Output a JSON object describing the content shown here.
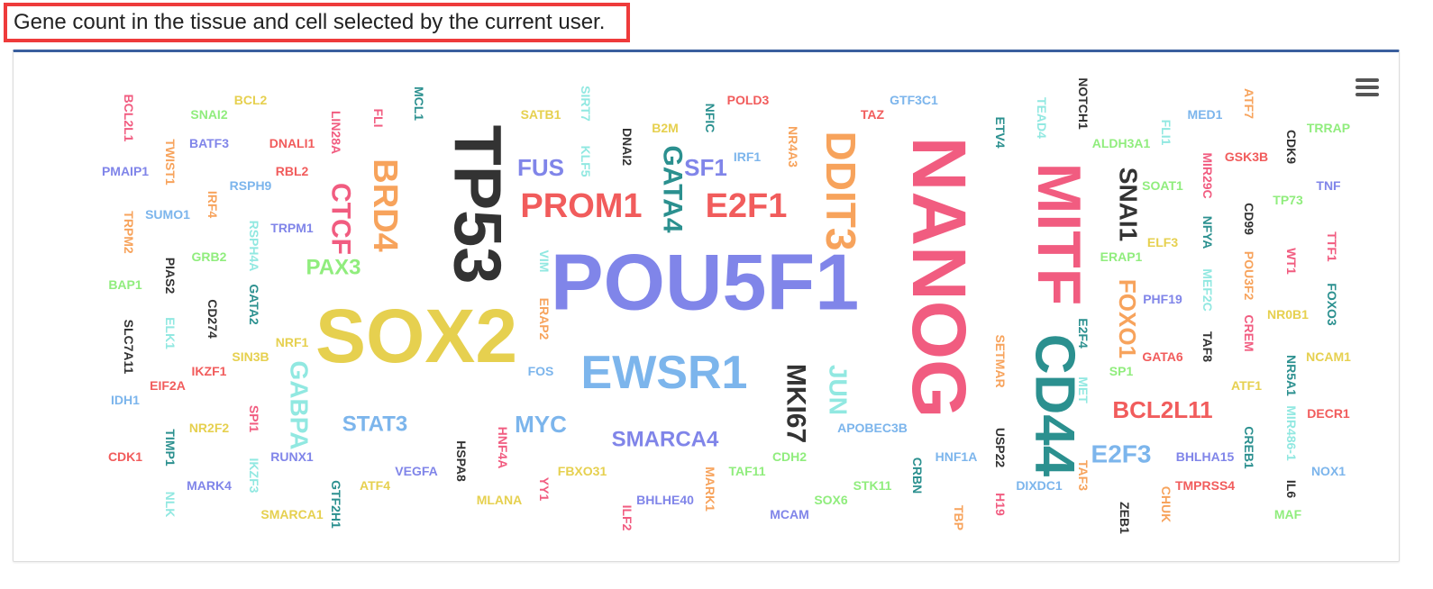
{
  "caption": "Gene count in the tissue and cell selected by the current user.",
  "menu": {
    "icon": "hamburger-menu-icon"
  },
  "colors": {
    "red": "#f15c5c",
    "yellow": "#e6d04f",
    "blue": "#7cb5ec",
    "black": "#333333",
    "green": "#90ed7d",
    "orange": "#f7a35c",
    "purple": "#8085e9",
    "pink": "#f15c80",
    "teal": "#2b908f",
    "cyan": "#91e8e1",
    "frame": "#3a5f9e",
    "caption_border": "#ee3b3b"
  },
  "chart_data": {
    "type": "wordcloud",
    "title": "",
    "words": [
      {
        "text": "POU5F1",
        "weight": 100,
        "color": "purple",
        "rotation": 0
      },
      {
        "text": "NANOG",
        "weight": 92,
        "color": "pink",
        "rotation": 90
      },
      {
        "text": "SOX2",
        "weight": 92,
        "color": "yellow",
        "rotation": 0
      },
      {
        "text": "TP53",
        "weight": 70,
        "color": "black",
        "rotation": 90
      },
      {
        "text": "MITF",
        "weight": 68,
        "color": "pink",
        "rotation": 90
      },
      {
        "text": "CD44",
        "weight": 62,
        "color": "teal",
        "rotation": 90
      },
      {
        "text": "EWSR1",
        "weight": 58,
        "color": "blue",
        "rotation": 0
      },
      {
        "text": "DDIT3",
        "weight": 50,
        "color": "orange",
        "rotation": 90
      },
      {
        "text": "PROM1",
        "weight": 42,
        "color": "red",
        "rotation": 0
      },
      {
        "text": "E2F1",
        "weight": 42,
        "color": "red",
        "rotation": 0
      },
      {
        "text": "BRD4",
        "weight": 38,
        "color": "orange",
        "rotation": 90
      },
      {
        "text": "MKI67",
        "weight": 32,
        "color": "black",
        "rotation": 90
      },
      {
        "text": "GATA4",
        "weight": 32,
        "color": "teal",
        "rotation": 90
      },
      {
        "text": "CTCF",
        "weight": 32,
        "color": "pink",
        "rotation": 90
      },
      {
        "text": "SNAI1",
        "weight": 30,
        "color": "black",
        "rotation": 90
      },
      {
        "text": "JUN",
        "weight": 30,
        "color": "cyan",
        "rotation": 90
      },
      {
        "text": "FOXO1",
        "weight": 28,
        "color": "orange",
        "rotation": 90
      },
      {
        "text": "GABPA",
        "weight": 28,
        "color": "cyan",
        "rotation": 90
      },
      {
        "text": "E2F3",
        "weight": 28,
        "color": "blue",
        "rotation": 0
      },
      {
        "text": "BCL2L11",
        "weight": 26,
        "color": "red",
        "rotation": 0
      },
      {
        "text": "SF1",
        "weight": 26,
        "color": "purple",
        "rotation": 0
      },
      {
        "text": "FUS",
        "weight": 26,
        "color": "purple",
        "rotation": 0
      },
      {
        "text": "MYC",
        "weight": 26,
        "color": "blue",
        "rotation": 0
      },
      {
        "text": "PAX3",
        "weight": 26,
        "color": "green",
        "rotation": 0
      },
      {
        "text": "STAT3",
        "weight": 25,
        "color": "blue",
        "rotation": 0
      },
      {
        "text": "SMARCA4",
        "weight": 25,
        "color": "purple",
        "rotation": 0
      },
      {
        "text": "BCL2L1",
        "weight": 14,
        "color": "pink",
        "rotation": 90
      },
      {
        "text": "SNAI2",
        "weight": 14,
        "color": "green",
        "rotation": 0
      },
      {
        "text": "BCL2",
        "weight": 14,
        "color": "yellow",
        "rotation": 0
      },
      {
        "text": "BATF3",
        "weight": 14,
        "color": "purple",
        "rotation": 0
      },
      {
        "text": "TWIST1",
        "weight": 14,
        "color": "orange",
        "rotation": 90
      },
      {
        "text": "PMAIP1",
        "weight": 14,
        "color": "purple",
        "rotation": 0
      },
      {
        "text": "DNALI1",
        "weight": 14,
        "color": "red",
        "rotation": 0
      },
      {
        "text": "RBL2",
        "weight": 14,
        "color": "red",
        "rotation": 0
      },
      {
        "text": "RSPH9",
        "weight": 14,
        "color": "blue",
        "rotation": 0
      },
      {
        "text": "SUMO1",
        "weight": 14,
        "color": "blue",
        "rotation": 0
      },
      {
        "text": "IRF4",
        "weight": 14,
        "color": "orange",
        "rotation": 90
      },
      {
        "text": "TRPM2",
        "weight": 14,
        "color": "orange",
        "rotation": 90
      },
      {
        "text": "TRPM1",
        "weight": 14,
        "color": "purple",
        "rotation": 0
      },
      {
        "text": "RSPH4A",
        "weight": 14,
        "color": "cyan",
        "rotation": 90
      },
      {
        "text": "LIN28A",
        "weight": 14,
        "color": "pink",
        "rotation": 90
      },
      {
        "text": "FLI",
        "weight": 14,
        "color": "pink",
        "rotation": 90
      },
      {
        "text": "MCL1",
        "weight": 14,
        "color": "teal",
        "rotation": 90
      },
      {
        "text": "GRB2",
        "weight": 14,
        "color": "green",
        "rotation": 0
      },
      {
        "text": "BAP1",
        "weight": 14,
        "color": "green",
        "rotation": 0
      },
      {
        "text": "PIAS2",
        "weight": 14,
        "color": "black",
        "rotation": 90
      },
      {
        "text": "CD274",
        "weight": 14,
        "color": "black",
        "rotation": 90
      },
      {
        "text": "GATA2",
        "weight": 14,
        "color": "teal",
        "rotation": 90
      },
      {
        "text": "SLC7A11",
        "weight": 14,
        "color": "black",
        "rotation": 90
      },
      {
        "text": "ELK1",
        "weight": 14,
        "color": "cyan",
        "rotation": 90
      },
      {
        "text": "NRF1",
        "weight": 14,
        "color": "yellow",
        "rotation": 0
      },
      {
        "text": "SIN3B",
        "weight": 14,
        "color": "yellow",
        "rotation": 0
      },
      {
        "text": "IKZF1",
        "weight": 14,
        "color": "red",
        "rotation": 0
      },
      {
        "text": "EIF2A",
        "weight": 14,
        "color": "red",
        "rotation": 0
      },
      {
        "text": "IDH1",
        "weight": 14,
        "color": "blue",
        "rotation": 0
      },
      {
        "text": "SPI1",
        "weight": 14,
        "color": "pink",
        "rotation": 90
      },
      {
        "text": "NR2F2",
        "weight": 14,
        "color": "yellow",
        "rotation": 0
      },
      {
        "text": "CDK1",
        "weight": 14,
        "color": "red",
        "rotation": 0
      },
      {
        "text": "TIMP1",
        "weight": 14,
        "color": "teal",
        "rotation": 90
      },
      {
        "text": "RUNX1",
        "weight": 14,
        "color": "purple",
        "rotation": 0
      },
      {
        "text": "IKZF3",
        "weight": 14,
        "color": "cyan",
        "rotation": 90
      },
      {
        "text": "MARK4",
        "weight": 14,
        "color": "purple",
        "rotation": 0
      },
      {
        "text": "NLK",
        "weight": 14,
        "color": "cyan",
        "rotation": 90
      },
      {
        "text": "SMARCA1",
        "weight": 14,
        "color": "yellow",
        "rotation": 0
      },
      {
        "text": "GTF2H1",
        "weight": 14,
        "color": "teal",
        "rotation": 90
      },
      {
        "text": "ATF4",
        "weight": 14,
        "color": "yellow",
        "rotation": 0
      },
      {
        "text": "VEGFA",
        "weight": 14,
        "color": "purple",
        "rotation": 0
      },
      {
        "text": "HSPA8",
        "weight": 14,
        "color": "black",
        "rotation": 90
      },
      {
        "text": "HNF4A",
        "weight": 14,
        "color": "pink",
        "rotation": 90
      },
      {
        "text": "MLANA",
        "weight": 14,
        "color": "yellow",
        "rotation": 0
      },
      {
        "text": "YY1",
        "weight": 14,
        "color": "pink",
        "rotation": 90
      },
      {
        "text": "FBXO31",
        "weight": 14,
        "color": "yellow",
        "rotation": 0
      },
      {
        "text": "ILF2",
        "weight": 14,
        "color": "pink",
        "rotation": 90
      },
      {
        "text": "BHLHE40",
        "weight": 14,
        "color": "purple",
        "rotation": 0
      },
      {
        "text": "MARK1",
        "weight": 14,
        "color": "orange",
        "rotation": 90
      },
      {
        "text": "TAF11",
        "weight": 14,
        "color": "green",
        "rotation": 0
      },
      {
        "text": "MCAM",
        "weight": 14,
        "color": "purple",
        "rotation": 0
      },
      {
        "text": "CDH2",
        "weight": 14,
        "color": "green",
        "rotation": 0
      },
      {
        "text": "SOX6",
        "weight": 14,
        "color": "green",
        "rotation": 0
      },
      {
        "text": "STK11",
        "weight": 14,
        "color": "green",
        "rotation": 0
      },
      {
        "text": "APOBEC3B",
        "weight": 14,
        "color": "blue",
        "rotation": 0
      },
      {
        "text": "CRBN",
        "weight": 14,
        "color": "teal",
        "rotation": 90
      },
      {
        "text": "HNF1A",
        "weight": 14,
        "color": "blue",
        "rotation": 0
      },
      {
        "text": "TBP",
        "weight": 14,
        "color": "orange",
        "rotation": 90
      },
      {
        "text": "USP22",
        "weight": 14,
        "color": "black",
        "rotation": 90
      },
      {
        "text": "H19",
        "weight": 14,
        "color": "pink",
        "rotation": 90
      },
      {
        "text": "DIXDC1",
        "weight": 14,
        "color": "blue",
        "rotation": 0
      },
      {
        "text": "TAF3",
        "weight": 14,
        "color": "orange",
        "rotation": 90
      },
      {
        "text": "ZEB1",
        "weight": 14,
        "color": "black",
        "rotation": 90
      },
      {
        "text": "CHUK",
        "weight": 14,
        "color": "orange",
        "rotation": 90
      },
      {
        "text": "TMPRSS4",
        "weight": 14,
        "color": "red",
        "rotation": 0
      },
      {
        "text": "IL6",
        "weight": 14,
        "color": "black",
        "rotation": 90
      },
      {
        "text": "MAF",
        "weight": 14,
        "color": "green",
        "rotation": 0
      },
      {
        "text": "NOX1",
        "weight": 14,
        "color": "blue",
        "rotation": 0
      },
      {
        "text": "BHLHA15",
        "weight": 14,
        "color": "purple",
        "rotation": 0
      },
      {
        "text": "CREB1",
        "weight": 14,
        "color": "teal",
        "rotation": 90
      },
      {
        "text": "MIR486-1",
        "weight": 14,
        "color": "cyan",
        "rotation": 90
      },
      {
        "text": "DECR1",
        "weight": 14,
        "color": "red",
        "rotation": 0
      },
      {
        "text": "NR5A1",
        "weight": 14,
        "color": "teal",
        "rotation": 90
      },
      {
        "text": "NCAM1",
        "weight": 14,
        "color": "yellow",
        "rotation": 0
      },
      {
        "text": "ATF1",
        "weight": 14,
        "color": "yellow",
        "rotation": 0
      },
      {
        "text": "GATA6",
        "weight": 14,
        "color": "red",
        "rotation": 0
      },
      {
        "text": "TAF8",
        "weight": 14,
        "color": "black",
        "rotation": 90
      },
      {
        "text": "SP1",
        "weight": 14,
        "color": "green",
        "rotation": 0
      },
      {
        "text": "MET",
        "weight": 14,
        "color": "cyan",
        "rotation": 90
      },
      {
        "text": "E2F4",
        "weight": 14,
        "color": "teal",
        "rotation": 90
      },
      {
        "text": "SETMAR",
        "weight": 14,
        "color": "orange",
        "rotation": 90
      },
      {
        "text": "PHF19",
        "weight": 14,
        "color": "purple",
        "rotation": 0
      },
      {
        "text": "CREM",
        "weight": 14,
        "color": "pink",
        "rotation": 90
      },
      {
        "text": "NR0B1",
        "weight": 14,
        "color": "yellow",
        "rotation": 0
      },
      {
        "text": "FOXO3",
        "weight": 14,
        "color": "teal",
        "rotation": 90
      },
      {
        "text": "ERAP1",
        "weight": 14,
        "color": "green",
        "rotation": 0
      },
      {
        "text": "ELF3",
        "weight": 14,
        "color": "yellow",
        "rotation": 0
      },
      {
        "text": "POU3F2",
        "weight": 14,
        "color": "orange",
        "rotation": 90
      },
      {
        "text": "MEF2C",
        "weight": 14,
        "color": "cyan",
        "rotation": 90
      },
      {
        "text": "WT1",
        "weight": 14,
        "color": "pink",
        "rotation": 90
      },
      {
        "text": "TTF1",
        "weight": 14,
        "color": "pink",
        "rotation": 90
      },
      {
        "text": "NFYA",
        "weight": 14,
        "color": "teal",
        "rotation": 90
      },
      {
        "text": "CD99",
        "weight": 14,
        "color": "black",
        "rotation": 90
      },
      {
        "text": "TP73",
        "weight": 14,
        "color": "green",
        "rotation": 0
      },
      {
        "text": "TNF",
        "weight": 14,
        "color": "purple",
        "rotation": 0
      },
      {
        "text": "SOAT1",
        "weight": 14,
        "color": "green",
        "rotation": 0
      },
      {
        "text": "MIR29C",
        "weight": 14,
        "color": "pink",
        "rotation": 90
      },
      {
        "text": "GSK3B",
        "weight": 14,
        "color": "red",
        "rotation": 0
      },
      {
        "text": "CDK9",
        "weight": 14,
        "color": "black",
        "rotation": 90
      },
      {
        "text": "TRRAP",
        "weight": 14,
        "color": "green",
        "rotation": 0
      },
      {
        "text": "ATF7",
        "weight": 14,
        "color": "orange",
        "rotation": 90
      },
      {
        "text": "MED1",
        "weight": 14,
        "color": "blue",
        "rotation": 0
      },
      {
        "text": "FLI1",
        "weight": 14,
        "color": "cyan",
        "rotation": 90
      },
      {
        "text": "ALDH3A1",
        "weight": 14,
        "color": "green",
        "rotation": 0
      },
      {
        "text": "NOTCH1",
        "weight": 14,
        "color": "black",
        "rotation": 90
      },
      {
        "text": "TEAD4",
        "weight": 14,
        "color": "cyan",
        "rotation": 90
      },
      {
        "text": "ETV4",
        "weight": 14,
        "color": "teal",
        "rotation": 90
      },
      {
        "text": "GTF3C1",
        "weight": 14,
        "color": "blue",
        "rotation": 0
      },
      {
        "text": "TAZ",
        "weight": 14,
        "color": "red",
        "rotation": 0
      },
      {
        "text": "POLD3",
        "weight": 14,
        "color": "red",
        "rotation": 0
      },
      {
        "text": "NR4A3",
        "weight": 14,
        "color": "orange",
        "rotation": 90
      },
      {
        "text": "NFIC",
        "weight": 14,
        "color": "teal",
        "rotation": 90
      },
      {
        "text": "IRF1",
        "weight": 14,
        "color": "blue",
        "rotation": 0
      },
      {
        "text": "B2M",
        "weight": 14,
        "color": "yellow",
        "rotation": 0
      },
      {
        "text": "DNAI2",
        "weight": 14,
        "color": "black",
        "rotation": 90
      },
      {
        "text": "SIRT7",
        "weight": 14,
        "color": "cyan",
        "rotation": 90
      },
      {
        "text": "KLF5",
        "weight": 14,
        "color": "cyan",
        "rotation": 90
      },
      {
        "text": "SATB1",
        "weight": 14,
        "color": "yellow",
        "rotation": 0
      },
      {
        "text": "VIM",
        "weight": 14,
        "color": "cyan",
        "rotation": 90
      },
      {
        "text": "ERAP2",
        "weight": 14,
        "color": "orange",
        "rotation": 90
      },
      {
        "text": "FOS",
        "weight": 14,
        "color": "blue",
        "rotation": 0
      }
    ]
  }
}
